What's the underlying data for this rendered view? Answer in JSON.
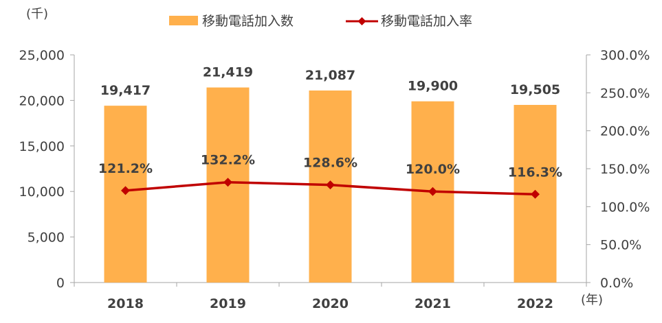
{
  "chart_data": {
    "type": "bar+line",
    "categories": [
      "2018",
      "2019",
      "2020",
      "2021",
      "2022"
    ],
    "series": [
      {
        "name": "移動電話加入数",
        "type": "bar",
        "axis": "left",
        "values": [
          19417,
          21419,
          21087,
          19900,
          19505
        ],
        "labels": [
          "19,417",
          "21,419",
          "21,087",
          "19,900",
          "19,505"
        ],
        "color": "#FFB04C"
      },
      {
        "name": "移動電話加入率",
        "type": "line",
        "axis": "right",
        "values": [
          121.2,
          132.2,
          128.6,
          120.0,
          116.3
        ],
        "labels": [
          "121.2%",
          "132.2%",
          "128.6%",
          "120.0%",
          "116.3%"
        ],
        "color": "#C00000"
      }
    ],
    "y_left": {
      "unit_label": "(千)",
      "ylim": [
        0,
        25000
      ],
      "ticks": [
        0,
        5000,
        10000,
        15000,
        20000,
        25000
      ],
      "tick_labels": [
        "0",
        "5,000",
        "10,000",
        "15,000",
        "20,000",
        "25,000"
      ]
    },
    "y_right": {
      "ylim": [
        0,
        300
      ],
      "ticks": [
        0,
        50,
        100,
        150,
        200,
        250,
        300
      ],
      "tick_labels": [
        "0.0%",
        "50.0%",
        "100.0%",
        "150.0%",
        "200.0%",
        "250.0%",
        "300.0%"
      ]
    },
    "x_unit_label": "(年)",
    "legend_position": "top",
    "grid": false,
    "axis_color": "#A6A6A6",
    "text_color": "#404040"
  }
}
